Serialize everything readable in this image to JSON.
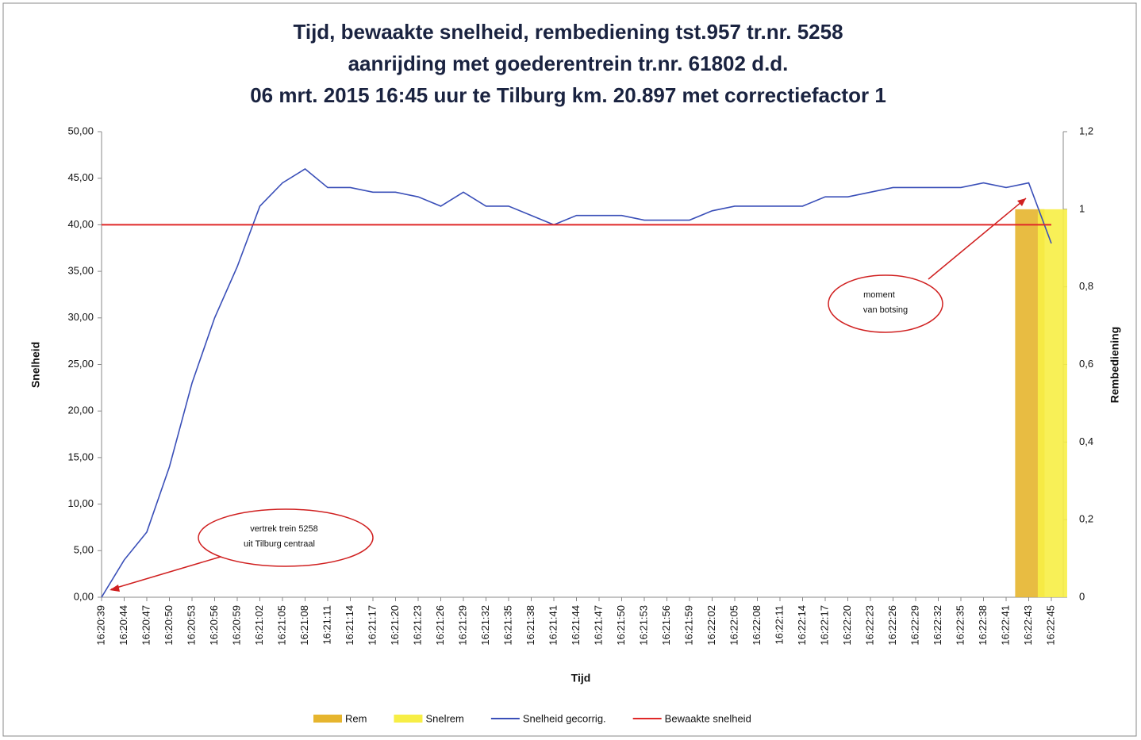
{
  "chart_data": {
    "type": "line",
    "title": [
      "Tijd, bewaakte snelheid, rembediening  tst.957 tr.nr. 5258",
      "aanrijding met goederentrein tr.nr. 61802 d.d.",
      "06 mrt. 2015 16:45 uur te Tilburg km. 20.897  met correctiefactor 1"
    ],
    "x_label": "Tijd",
    "y_label": "Snelheid",
    "y2_label": "Rembediening",
    "categories": [
      "16:20:39",
      "16:20:44",
      "16:20:47",
      "16:20:50",
      "16:20:53",
      "16:20:56",
      "16:20:59",
      "16:21:02",
      "16:21:05",
      "16:21:08",
      "16:21:11",
      "16:21:14",
      "16:21:17",
      "16:21:20",
      "16:21:23",
      "16:21:26",
      "16:21:29",
      "16:21:32",
      "16:21:35",
      "16:21:38",
      "16:21:41",
      "16:21:44",
      "16:21:47",
      "16:21:50",
      "16:21:53",
      "16:21:56",
      "16:21:59",
      "16:22:02",
      "16:22:05",
      "16:22:08",
      "16:22:11",
      "16:22:14",
      "16:22:17",
      "16:22:20",
      "16:22:23",
      "16:22:26",
      "16:22:29",
      "16:22:32",
      "16:22:35",
      "16:22:38",
      "16:22:41",
      "16:22:43",
      "16:22:45"
    ],
    "series": [
      {
        "name": "Rem",
        "type": "bar",
        "axis": "y2",
        "color": "#e6b52e",
        "values": [
          null,
          null,
          null,
          null,
          null,
          null,
          null,
          null,
          null,
          null,
          null,
          null,
          null,
          null,
          null,
          null,
          null,
          null,
          null,
          null,
          null,
          null,
          null,
          null,
          null,
          null,
          null,
          null,
          null,
          null,
          null,
          null,
          null,
          null,
          null,
          null,
          null,
          null,
          null,
          null,
          null,
          1,
          null
        ]
      },
      {
        "name": "Snelrem",
        "type": "bar",
        "axis": "y2",
        "color": "#f7ee45",
        "values": [
          null,
          null,
          null,
          null,
          null,
          null,
          null,
          null,
          null,
          null,
          null,
          null,
          null,
          null,
          null,
          null,
          null,
          null,
          null,
          null,
          null,
          null,
          null,
          null,
          null,
          null,
          null,
          null,
          null,
          null,
          null,
          null,
          null,
          null,
          null,
          null,
          null,
          null,
          null,
          null,
          null,
          null,
          1
        ]
      },
      {
        "name": "Snelheid gecorrig.",
        "type": "line",
        "color": "#3a4fb8",
        "values": [
          0,
          4,
          7,
          14,
          23,
          30,
          35.5,
          42,
          44.5,
          46,
          44,
          44,
          43.5,
          43.5,
          43,
          42,
          43.5,
          42,
          42,
          41,
          40,
          41,
          41,
          41,
          40.5,
          40.5,
          40.5,
          41.5,
          42,
          42,
          42,
          42,
          43,
          43,
          43.5,
          44,
          44,
          44,
          44,
          44.5,
          44,
          44.5,
          38
        ]
      },
      {
        "name": "Bewaakte snelheid",
        "type": "line",
        "color": "#e02828",
        "values": [
          40,
          40,
          40,
          40,
          40,
          40,
          40,
          40,
          40,
          40,
          40,
          40,
          40,
          40,
          40,
          40,
          40,
          40,
          40,
          40,
          40,
          40,
          40,
          40,
          40,
          40,
          40,
          40,
          40,
          40,
          40,
          40,
          40,
          40,
          40,
          40,
          40,
          40,
          40,
          40,
          40,
          40,
          40
        ]
      }
    ],
    "ylim": [
      0,
      50
    ],
    "yticks": [
      {
        "value": 0,
        "label": "0,00"
      },
      {
        "value": 5,
        "label": "5,00"
      },
      {
        "value": 10,
        "label": "10,00"
      },
      {
        "value": 15,
        "label": "15,00"
      },
      {
        "value": 20,
        "label": "20,00"
      },
      {
        "value": 25,
        "label": "25,00"
      },
      {
        "value": 30,
        "label": "30,00"
      },
      {
        "value": 35,
        "label": "35,00"
      },
      {
        "value": 40,
        "label": "40,00"
      },
      {
        "value": 45,
        "label": "45,00"
      },
      {
        "value": 50,
        "label": "50,00"
      }
    ],
    "y2lim": [
      0,
      1.2
    ],
    "y2ticks": [
      0,
      {
        "value": 0.2,
        "label": "0,2"
      },
      {
        "value": 0.4,
        "label": "0,4"
      },
      {
        "value": 0.6,
        "label": "0,6"
      },
      {
        "value": 0.8,
        "label": "0,8"
      },
      1,
      {
        "value": 1.2,
        "label": "1,2"
      }
    ],
    "annotations": [
      [
        "moment",
        "van botsing"
      ],
      [
        "vertrek trein 5258",
        "uit Tilburg centraal"
      ]
    ]
  }
}
